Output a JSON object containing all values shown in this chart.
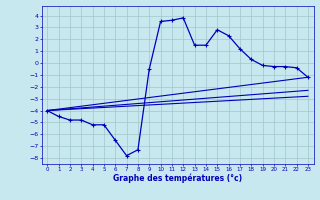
{
  "xlabel": "Graphe des températures (°c)",
  "bg_color": "#c8e8f0",
  "grid_color": "#a0c8c8",
  "line_color": "#0000bb",
  "xlim": [
    -0.5,
    23.5
  ],
  "ylim": [
    -8.5,
    4.8
  ],
  "xticks": [
    0,
    1,
    2,
    3,
    4,
    5,
    6,
    7,
    8,
    9,
    10,
    11,
    12,
    13,
    14,
    15,
    16,
    17,
    18,
    19,
    20,
    21,
    22,
    23
  ],
  "yticks": [
    -8,
    -7,
    -6,
    -5,
    -4,
    -3,
    -2,
    -1,
    0,
    1,
    2,
    3,
    4
  ],
  "series1_x": [
    0,
    1,
    2,
    3,
    4,
    5,
    6,
    7,
    8,
    9,
    10,
    11,
    12,
    13,
    14,
    15,
    16,
    17,
    18,
    19,
    20,
    21,
    22,
    23
  ],
  "series1_y": [
    -4.0,
    -4.5,
    -4.8,
    -4.8,
    -5.2,
    -5.2,
    -6.5,
    -7.8,
    -7.3,
    -0.5,
    3.5,
    3.6,
    3.8,
    1.5,
    1.5,
    2.8,
    2.3,
    1.2,
    0.3,
    -0.2,
    -0.3,
    -0.3,
    -0.4,
    -1.2
  ],
  "series2_x": [
    0,
    23
  ],
  "series2_y": [
    -4.0,
    -1.2
  ],
  "series3_x": [
    0,
    23
  ],
  "series3_y": [
    -4.0,
    -2.3
  ],
  "series4_x": [
    0,
    23
  ],
  "series4_y": [
    -4.0,
    -2.8
  ]
}
